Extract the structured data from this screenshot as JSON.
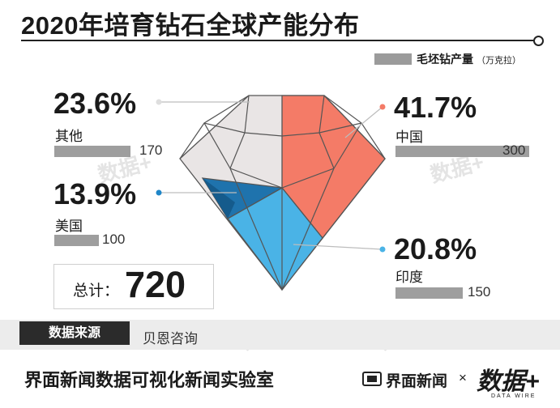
{
  "title": "2020年培育钻石全球产能分布",
  "legend": {
    "label": "毛坯钻产量",
    "unit": "（万克拉）"
  },
  "chart_data": {
    "type": "pie",
    "title": "2020年培育钻石全球产能分布",
    "unit": "万克拉",
    "segments": [
      {
        "name": "中国",
        "percent": "41.7%",
        "share": 41.7,
        "value": 300,
        "color": "#f47b67"
      },
      {
        "name": "印度",
        "percent": "20.8%",
        "share": 20.8,
        "value": 150,
        "color": "#4ab3e6"
      },
      {
        "name": "美国",
        "percent": "13.9%",
        "share": 13.9,
        "value": 100,
        "color": "#1f73ad"
      },
      {
        "name": "其他",
        "percent": "23.6%",
        "share": 23.6,
        "value": 170,
        "color": "#e9e5e5"
      }
    ],
    "total_label": "总计：",
    "total": 720
  },
  "values_text": {
    "china": "300",
    "india": "150",
    "usa": "100",
    "other": "170",
    "total": "720"
  },
  "source": {
    "tag": "数据来源",
    "text": "贝恩咨询"
  },
  "footer": {
    "title": "界面新闻数据可视化新闻实验室",
    "brand": "界面新闻",
    "times": "×",
    "logo": "数据+",
    "logo_sub": "DATA WIRE"
  },
  "watermark": "数据+"
}
